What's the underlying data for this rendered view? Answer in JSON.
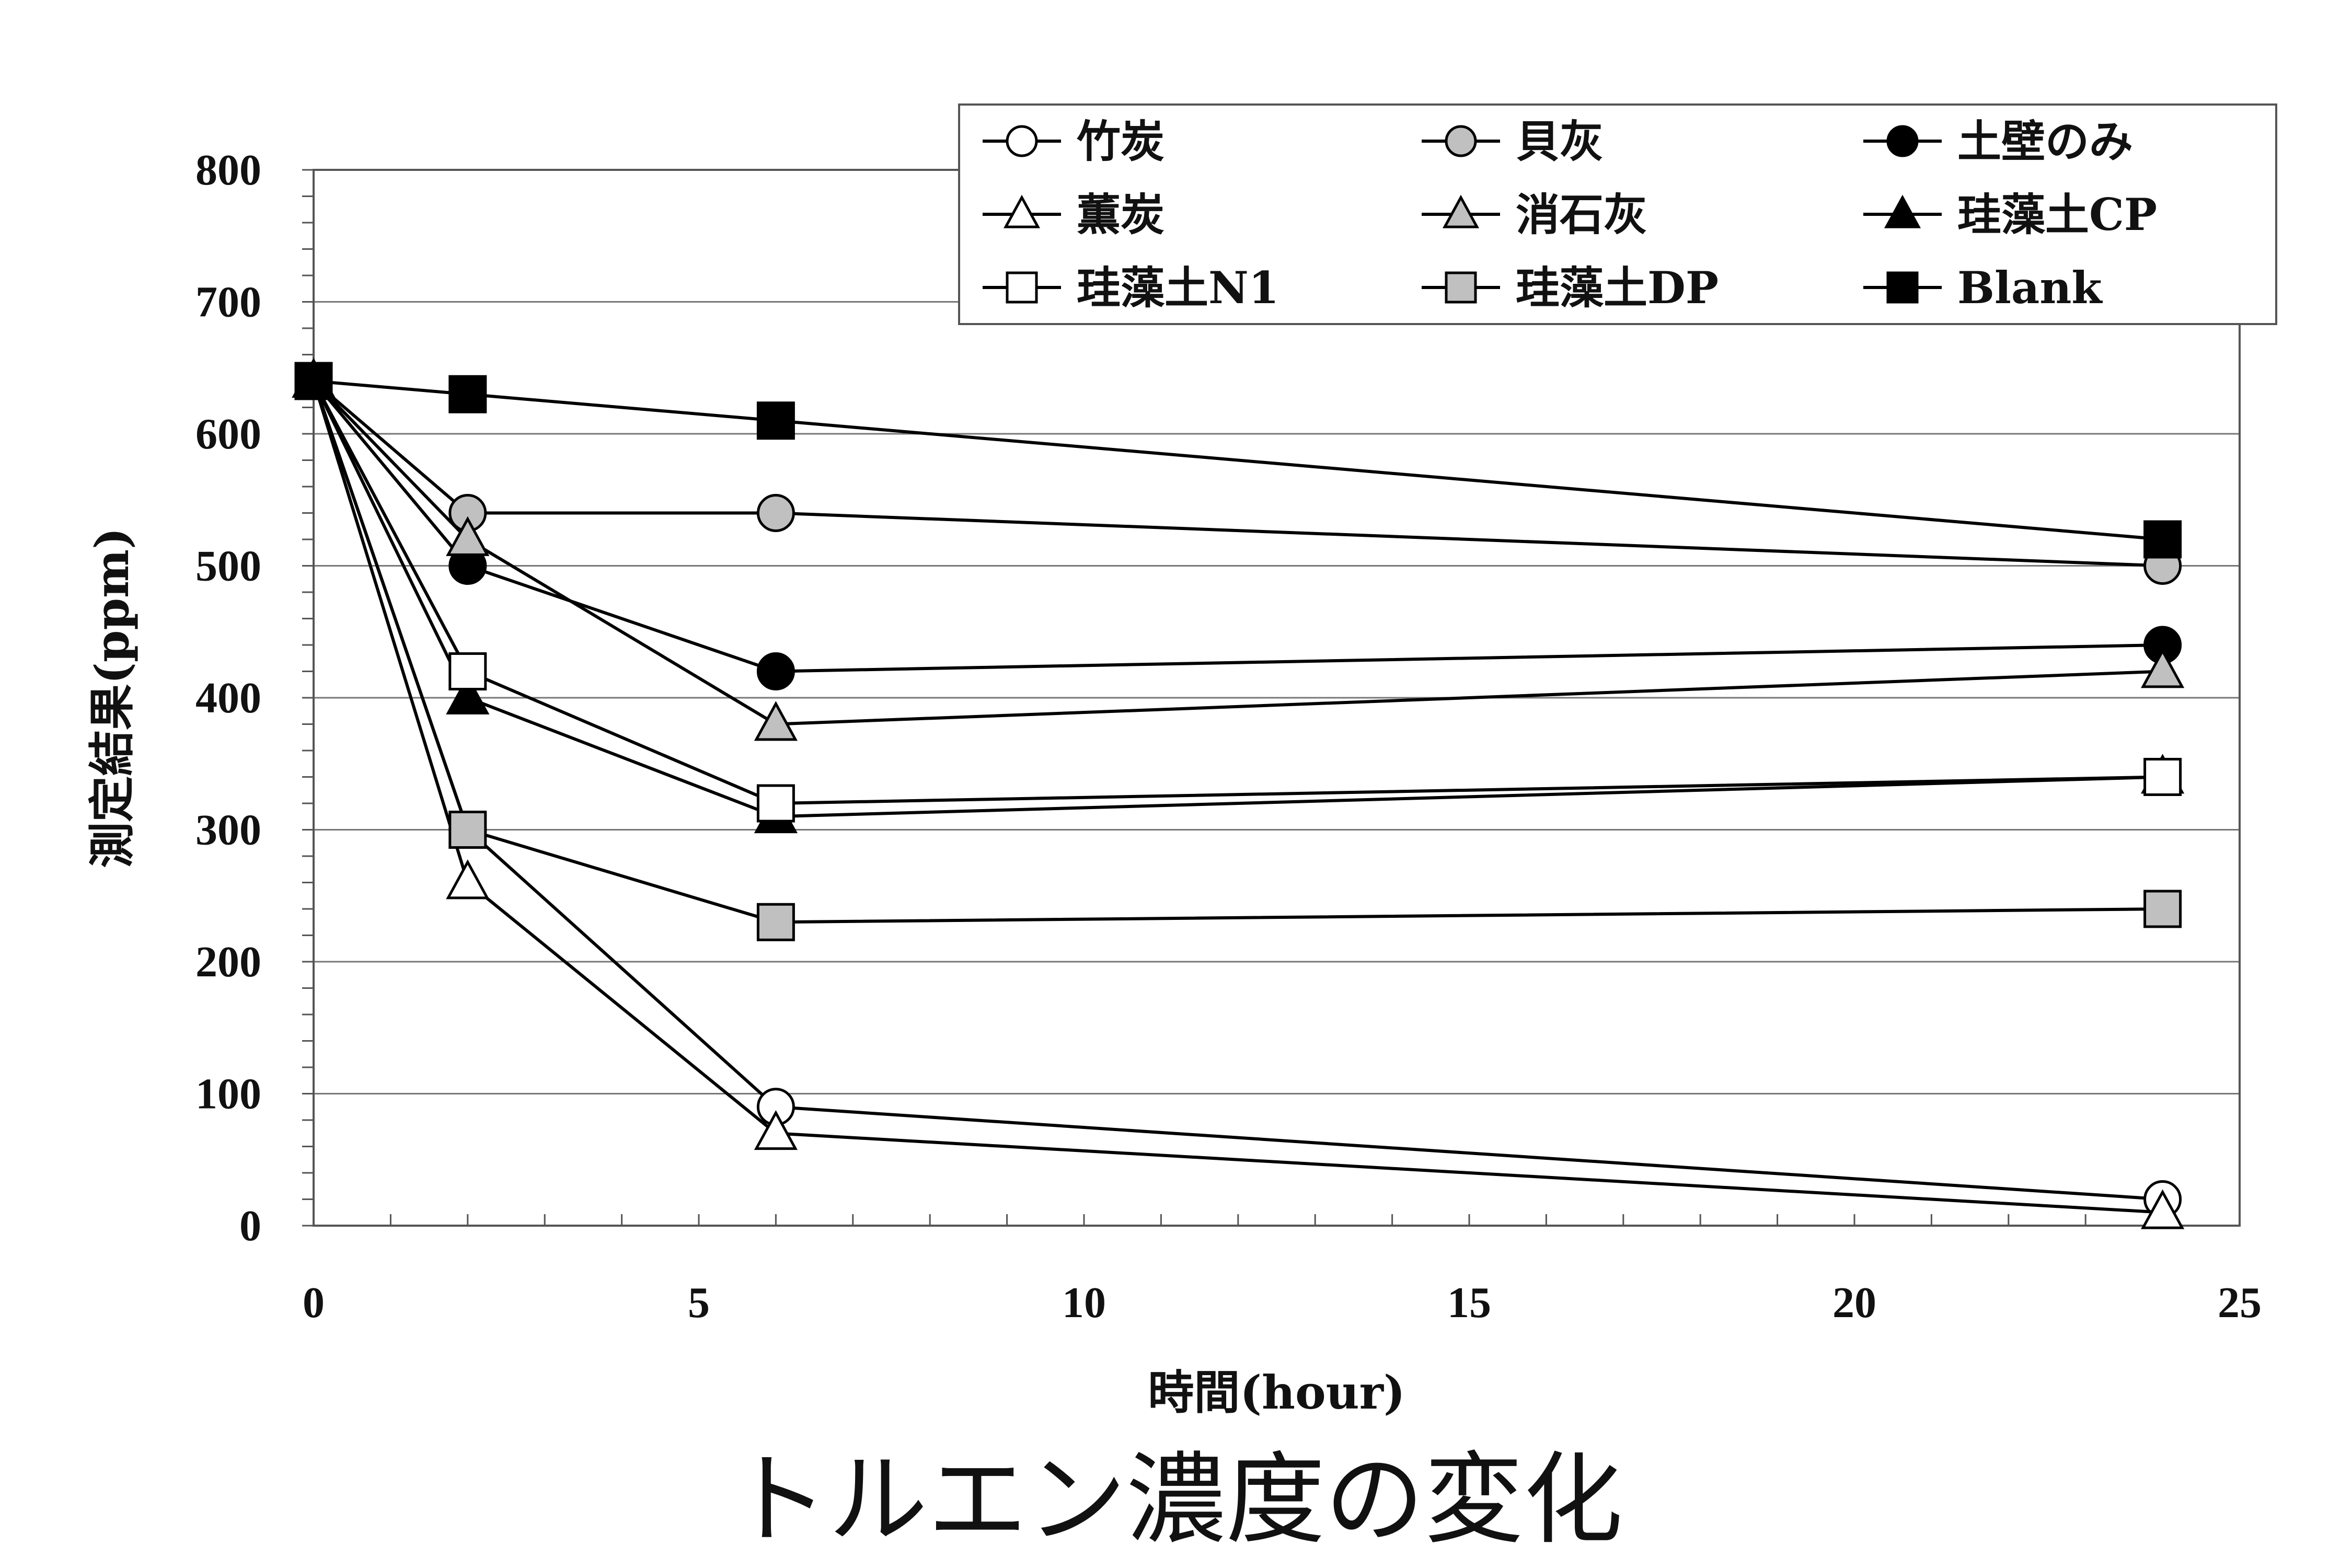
{
  "chart_data": {
    "type": "line",
    "title": "",
    "caption": "トルエン濃度の変化",
    "xlabel": "時間(hour)",
    "ylabel": "測定結果(ppm)",
    "xlim": [
      0,
      25
    ],
    "ylim": [
      0,
      800
    ],
    "xticks": [
      0,
      5,
      10,
      15,
      20,
      25
    ],
    "yticks": [
      0,
      100,
      200,
      300,
      400,
      500,
      600,
      700,
      800
    ],
    "grid": "horizontal",
    "legend_position": "top-right",
    "series": [
      {
        "name": "竹炭",
        "marker": "circle",
        "fill": "#ffffff",
        "x": [
          0,
          2,
          6,
          24
        ],
        "y": [
          640,
          300,
          90,
          20
        ]
      },
      {
        "name": "貝灰",
        "marker": "circle",
        "fill": "#c0c0c0",
        "x": [
          0,
          2,
          6,
          24
        ],
        "y": [
          640,
          540,
          540,
          500
        ]
      },
      {
        "name": "土壁のみ",
        "marker": "circle",
        "fill": "#000000",
        "x": [
          0,
          2,
          6,
          24
        ],
        "y": [
          640,
          500,
          420,
          440
        ]
      },
      {
        "name": "薫炭",
        "marker": "triangle",
        "fill": "#ffffff",
        "x": [
          0,
          2,
          6,
          24
        ],
        "y": [
          640,
          260,
          70,
          10
        ]
      },
      {
        "name": "消石灰",
        "marker": "triangle",
        "fill": "#c0c0c0",
        "x": [
          0,
          2,
          6,
          24
        ],
        "y": [
          640,
          520,
          380,
          420
        ]
      },
      {
        "name": "珪藻土CP",
        "marker": "triangle",
        "fill": "#000000",
        "x": [
          0,
          2,
          6,
          24
        ],
        "y": [
          640,
          400,
          310,
          340
        ]
      },
      {
        "name": "珪藻土N1",
        "marker": "square",
        "fill": "#ffffff",
        "x": [
          0,
          2,
          6,
          24
        ],
        "y": [
          640,
          420,
          320,
          340
        ]
      },
      {
        "name": "珪藻土DP",
        "marker": "square",
        "fill": "#c0c0c0",
        "x": [
          0,
          2,
          6,
          24
        ],
        "y": [
          640,
          300,
          230,
          240
        ]
      },
      {
        "name": "Blank",
        "marker": "square",
        "fill": "#000000",
        "x": [
          0,
          2,
          6,
          24
        ],
        "y": [
          640,
          630,
          610,
          520
        ]
      }
    ]
  }
}
